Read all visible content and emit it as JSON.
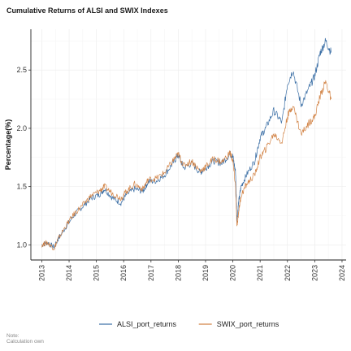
{
  "chart_data": {
    "type": "line",
    "title": "Cumulative Returns of ALSI and SWIX Indexes",
    "xlabel": "",
    "ylabel": "Percentage(%)",
    "xlim": [
      2012.6,
      2024.15
    ],
    "ylim": [
      0.87,
      2.85
    ],
    "x_ticks": [
      "2013",
      "2014",
      "2015",
      "2016",
      "2017",
      "2018",
      "2019",
      "2020",
      "2021",
      "2022",
      "2023",
      "2024"
    ],
    "y_ticks": [
      "1.0",
      "1.5",
      "2.0",
      "2.5"
    ],
    "y_tick_values": [
      1.0,
      1.5,
      2.0,
      2.5
    ],
    "grid": true,
    "legend_position": "bottom",
    "series": [
      {
        "name": "ALSI_port_returns",
        "color": "#3a6ea5",
        "x": [
          2013.0,
          2013.2,
          2013.45,
          2013.6,
          2013.9,
          2014.2,
          2014.5,
          2014.8,
          2015.1,
          2015.3,
          2015.6,
          2015.9,
          2016.1,
          2016.4,
          2016.7,
          2016.9,
          2017.2,
          2017.5,
          2017.8,
          2018.0,
          2018.2,
          2018.5,
          2018.8,
          2019.0,
          2019.3,
          2019.6,
          2019.9,
          2020.0,
          2020.1,
          2020.15,
          2020.22,
          2020.3,
          2020.5,
          2020.8,
          2021.0,
          2021.2,
          2021.5,
          2021.8,
          2022.0,
          2022.2,
          2022.5,
          2022.8,
          2023.0,
          2023.2,
          2023.4,
          2023.6
        ],
        "values": [
          1.0,
          1.02,
          0.98,
          1.05,
          1.16,
          1.26,
          1.33,
          1.4,
          1.43,
          1.48,
          1.4,
          1.36,
          1.43,
          1.48,
          1.46,
          1.54,
          1.55,
          1.6,
          1.7,
          1.77,
          1.66,
          1.7,
          1.62,
          1.66,
          1.72,
          1.7,
          1.78,
          1.76,
          1.62,
          1.22,
          1.38,
          1.5,
          1.6,
          1.72,
          1.92,
          2.0,
          2.15,
          2.05,
          2.38,
          2.5,
          2.2,
          2.35,
          2.45,
          2.65,
          2.75,
          2.65
        ]
      },
      {
        "name": "SWIX_port_returns",
        "color": "#d28447",
        "x": [
          2013.0,
          2013.2,
          2013.45,
          2013.6,
          2013.9,
          2014.2,
          2014.5,
          2014.8,
          2015.1,
          2015.3,
          2015.6,
          2015.9,
          2016.1,
          2016.4,
          2016.7,
          2016.9,
          2017.2,
          2017.5,
          2017.8,
          2018.0,
          2018.2,
          2018.5,
          2018.8,
          2019.0,
          2019.3,
          2019.6,
          2019.9,
          2020.0,
          2020.1,
          2020.15,
          2020.22,
          2020.3,
          2020.5,
          2020.8,
          2021.0,
          2021.2,
          2021.5,
          2021.8,
          2022.0,
          2022.2,
          2022.5,
          2022.8,
          2023.0,
          2023.2,
          2023.4,
          2023.6
        ],
        "values": [
          1.0,
          1.02,
          0.97,
          1.05,
          1.17,
          1.27,
          1.34,
          1.42,
          1.46,
          1.5,
          1.44,
          1.4,
          1.46,
          1.52,
          1.48,
          1.56,
          1.57,
          1.62,
          1.72,
          1.78,
          1.68,
          1.72,
          1.63,
          1.67,
          1.74,
          1.71,
          1.79,
          1.72,
          1.5,
          1.15,
          1.3,
          1.42,
          1.52,
          1.6,
          1.75,
          1.82,
          1.95,
          1.88,
          2.1,
          2.2,
          1.95,
          2.05,
          2.1,
          2.28,
          2.4,
          2.25
        ]
      }
    ]
  },
  "note": {
    "line1": "Note:",
    "line2": "Calculation own"
  }
}
